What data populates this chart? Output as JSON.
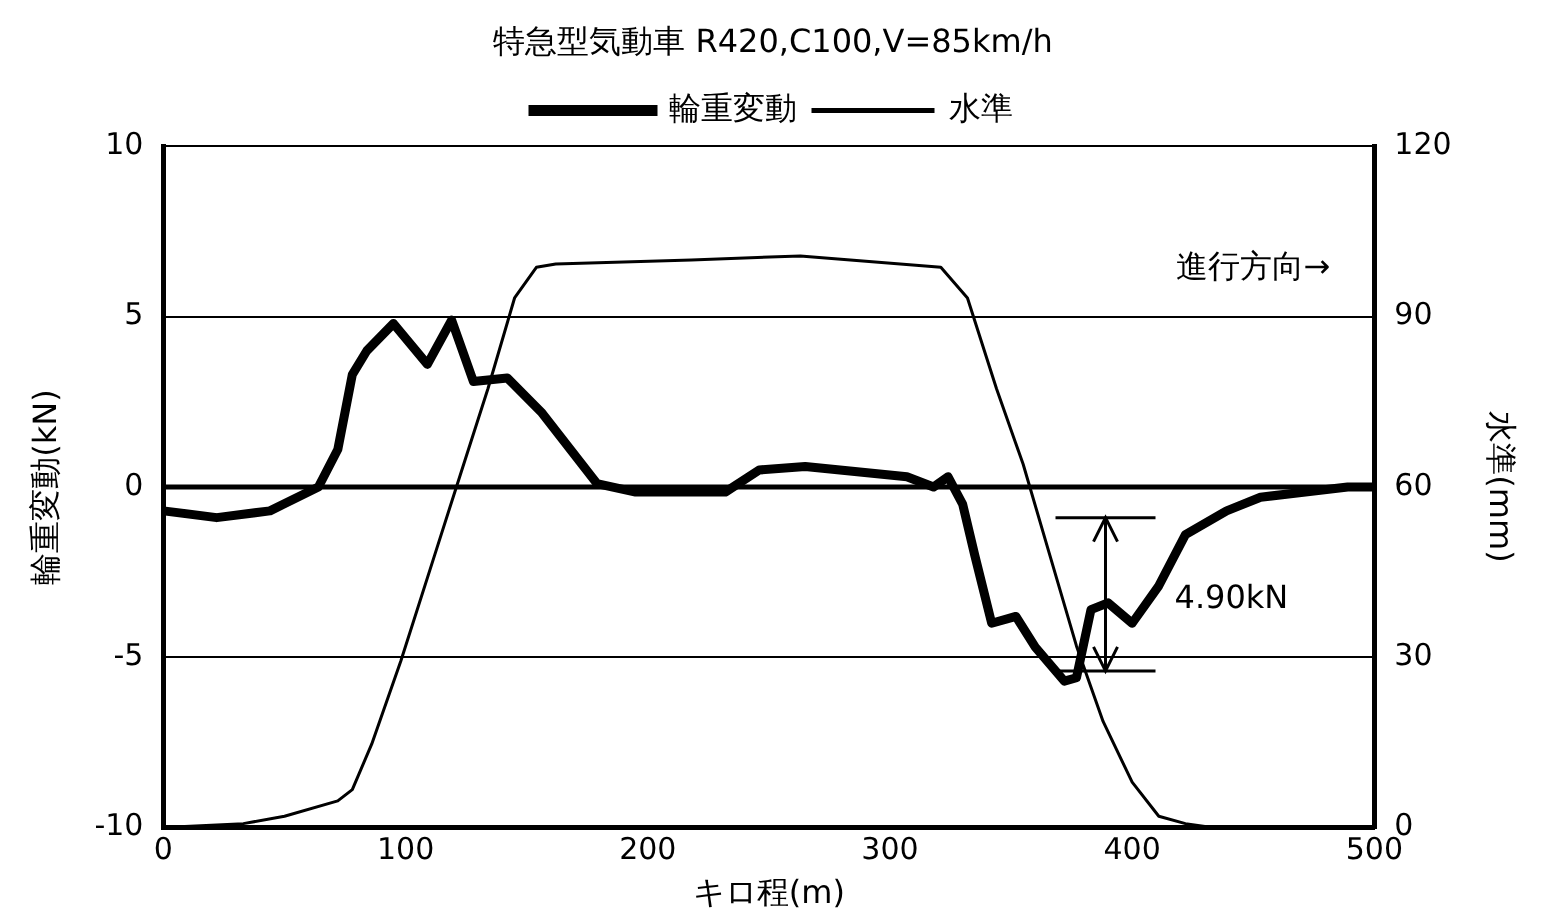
{
  "chart_data": {
    "type": "line",
    "title": "特急型気動車 R420,C100,V=85km/h",
    "xlabel": "キロ程(m)",
    "ylabel": "輪重変動(kN)",
    "y2label": "水準(mm)",
    "xlim": [
      0,
      500
    ],
    "xticks": [
      0,
      100,
      200,
      300,
      400,
      500
    ],
    "ylim": [
      -10,
      10
    ],
    "yticks": [
      -10,
      -5,
      0,
      5,
      10
    ],
    "y2lim": [
      0,
      120
    ],
    "y2ticks": [
      0,
      30,
      60,
      90,
      120
    ],
    "grid": "y",
    "legend": "top",
    "marker": "none",
    "line_style": "solid",
    "annotations": [
      "進行方向→",
      "4.90kN"
    ],
    "series": [
      {
        "name": "輪重変動",
        "color": "#000000",
        "x": [
          0,
          22,
          44,
          64,
          72,
          78,
          84,
          95,
          109,
          119,
          128,
          142,
          156,
          179,
          195,
          232,
          246,
          265,
          307,
          318,
          324,
          330,
          335,
          342,
          352,
          360,
          372,
          377,
          383,
          390,
          400,
          411,
          422,
          439,
          453,
          489,
          500
        ],
        "values": [
          -0.7,
          -0.9,
          -0.7,
          0,
          1.1,
          3.3,
          4.0,
          4.8,
          3.6,
          4.9,
          3.1,
          3.2,
          2.2,
          0.1,
          -0.15,
          -0.15,
          0.5,
          0.6,
          0.3,
          0,
          0.3,
          -0.5,
          -2.0,
          -4.0,
          -3.8,
          -4.7,
          -5.7,
          -5.6,
          -3.6,
          -3.4,
          -4.0,
          -2.9,
          -1.4,
          -0.7,
          -0.3,
          0,
          0
        ]
      },
      {
        "name": "水準",
        "color": "#000000",
        "axis": "y2",
        "x": [
          0,
          33,
          50,
          72,
          78,
          86,
          98,
          112,
          123,
          134,
          145,
          154,
          162,
          218,
          263,
          321,
          332,
          344,
          355,
          366,
          377,
          388,
          400,
          411,
          422,
          433,
          500
        ],
        "values": [
          0,
          0.7,
          2,
          4.7,
          6.7,
          14.7,
          29.3,
          48,
          62.7,
          77.3,
          93.3,
          98.7,
          99.3,
          100,
          100.7,
          98.7,
          93.3,
          77.3,
          64,
          48,
          32,
          18.7,
          8,
          2,
          0.7,
          0,
          0
        ]
      }
    ]
  }
}
